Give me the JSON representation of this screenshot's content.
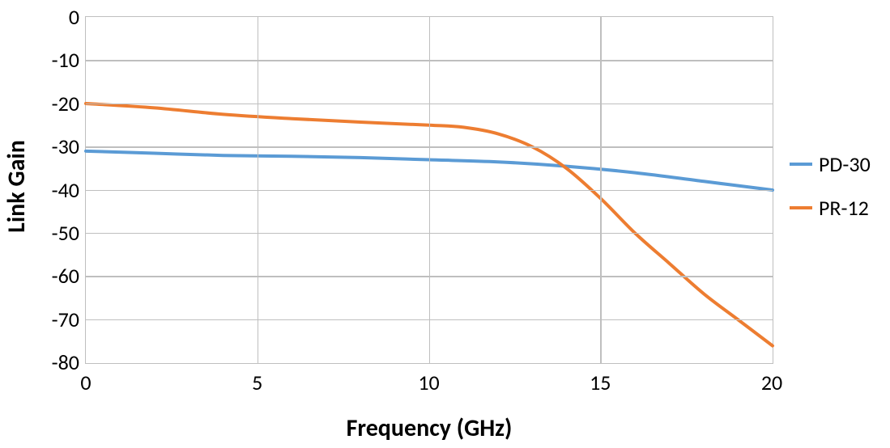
{
  "chart": {
    "type": "line",
    "y_title": "Link Gain",
    "x_title": "Frequency  (GHz)",
    "title_fontsize": 30,
    "tick_fontsize": 26,
    "legend_fontsize": 26,
    "background_color": "#ffffff",
    "grid_color": "#bfbfbf",
    "line_width": 4,
    "xlim": [
      0,
      20
    ],
    "ylim": [
      -80,
      0
    ],
    "xticks": [
      0,
      5,
      10,
      15,
      20
    ],
    "yticks": [
      0,
      -10,
      -20,
      -30,
      -40,
      -50,
      -60,
      -70,
      -80
    ],
    "series": [
      {
        "name": "PD-30",
        "color": "#5b9bd5",
        "x": [
          0,
          2,
          4,
          6,
          8,
          10,
          12,
          14,
          16,
          18,
          20
        ],
        "y": [
          -31,
          -31.5,
          -32,
          -32.2,
          -32.5,
          -33,
          -33.5,
          -34.5,
          -36,
          -38,
          -40
        ]
      },
      {
        "name": "PR-12",
        "color": "#ed7d31",
        "x": [
          0,
          2,
          4,
          6,
          8,
          10,
          11,
          12,
          13,
          14,
          15,
          16,
          17,
          18,
          19,
          20
        ],
        "y": [
          -20,
          -21,
          -22.5,
          -23.5,
          -24.3,
          -25,
          -25.5,
          -27,
          -30,
          -35,
          -42,
          -50,
          -57,
          -64,
          -70,
          -76
        ]
      }
    ]
  }
}
